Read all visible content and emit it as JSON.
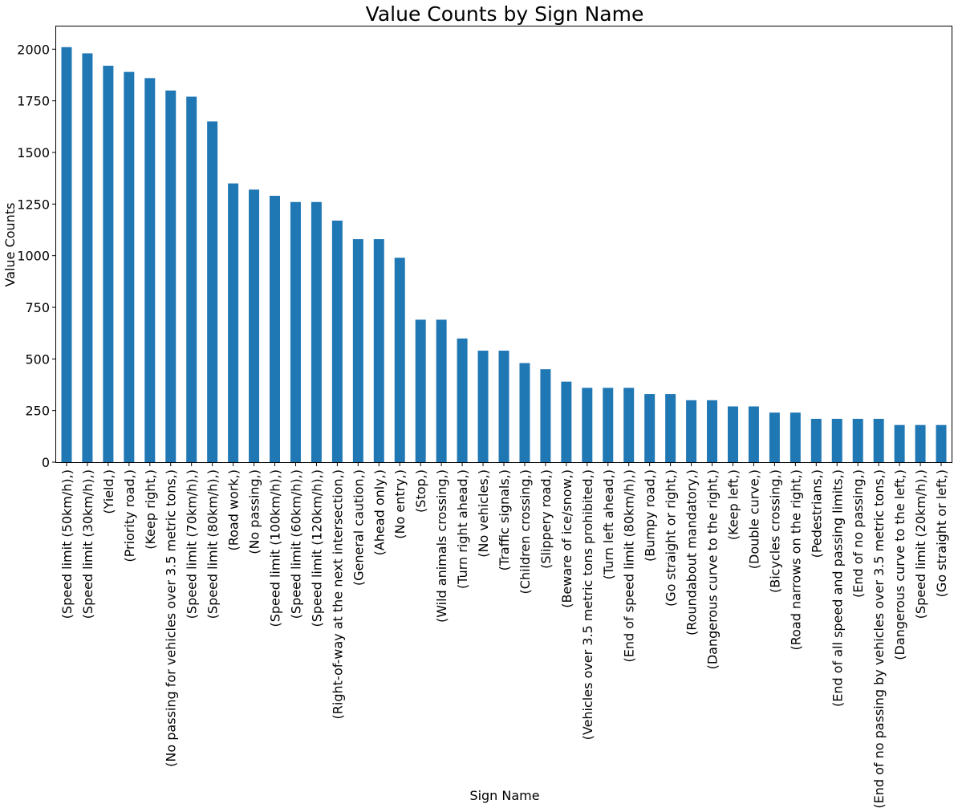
{
  "chart_data": {
    "type": "bar",
    "title": "Value Counts by Sign Name",
    "xlabel": "Sign Name",
    "ylabel": "Value Counts",
    "ylim": [
      0,
      2110
    ],
    "yticks": [
      0,
      250,
      500,
      750,
      1000,
      1250,
      1500,
      1750,
      2000
    ],
    "grid": false,
    "legend": "none",
    "bar_color": "#1f77b4",
    "categories": [
      "(Speed limit (50km/h),)",
      "(Speed limit (30km/h),)",
      "(Yield,)",
      "(Priority road,)",
      "(Keep right,)",
      "(No passing for vehicles over 3.5 metric tons,)",
      "(Speed limit (70km/h),)",
      "(Speed limit (80km/h),)",
      "(Road work,)",
      "(No passing,)",
      "(Speed limit (100km/h),)",
      "(Speed limit (60km/h),)",
      "(Speed limit (120km/h),)",
      "(Right-of-way at the next intersection,)",
      "(General caution,)",
      "(Ahead only,)",
      "(No entry,)",
      "(Stop,)",
      "(Wild animals crossing,)",
      "(Turn right ahead,)",
      "(No vehicles,)",
      "(Traffic signals,)",
      "(Children crossing,)",
      "(Slippery road,)",
      "(Beware of ice/snow,)",
      "(Vehicles over 3.5 metric tons prohibited,)",
      "(Turn left ahead,)",
      "(End of speed limit (80km/h),)",
      "(Bumpy road,)",
      "(Go straight or right,)",
      "(Roundabout mandatory,)",
      "(Dangerous curve to the right,)",
      "(Keep left,)",
      "(Double curve,)",
      "(Bicycles crossing,)",
      "(Road narrows on the right,)",
      "(Pedestrians,)",
      "(End of all speed and passing limits,)",
      "(End of no passing,)",
      "(End of no passing by vehicles over 3.5 metric tons,)",
      "(Dangerous curve to the left,)",
      "(Speed limit (20km/h),)",
      "(Go straight or left,)"
    ],
    "values": [
      2010,
      1980,
      1920,
      1890,
      1860,
      1800,
      1770,
      1650,
      1350,
      1320,
      1290,
      1260,
      1260,
      1170,
      1080,
      1080,
      990,
      690,
      690,
      599,
      540,
      540,
      480,
      450,
      390,
      360,
      360,
      360,
      330,
      330,
      300,
      300,
      270,
      270,
      240,
      240,
      210,
      210,
      210,
      210,
      180,
      180,
      180
    ]
  }
}
